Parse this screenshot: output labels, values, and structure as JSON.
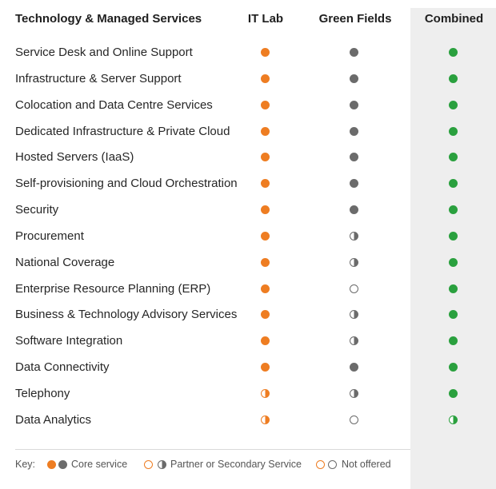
{
  "header": {
    "title": "Technology & Managed Services",
    "columns": [
      "IT Lab",
      "Green Fields",
      "Combined"
    ]
  },
  "rows": [
    {
      "label": "Service Desk and Online Support",
      "it_lab": "core",
      "green_fields": "core",
      "combined": "core"
    },
    {
      "label": "Infrastructure & Server Support",
      "it_lab": "core",
      "green_fields": "core",
      "combined": "core"
    },
    {
      "label": "Colocation and Data Centre Services",
      "it_lab": "core",
      "green_fields": "core",
      "combined": "core"
    },
    {
      "label": "Dedicated Infrastructure & Private Cloud",
      "it_lab": "core",
      "green_fields": "core",
      "combined": "core"
    },
    {
      "label": "Hosted Servers (IaaS)",
      "it_lab": "core",
      "green_fields": "core",
      "combined": "core"
    },
    {
      "label": "Self-provisioning and Cloud Orchestration",
      "it_lab": "core",
      "green_fields": "core",
      "combined": "core"
    },
    {
      "label": "Security",
      "it_lab": "core",
      "green_fields": "core",
      "combined": "core"
    },
    {
      "label": "Procurement",
      "it_lab": "core",
      "green_fields": "partner",
      "combined": "core"
    },
    {
      "label": "National Coverage",
      "it_lab": "core",
      "green_fields": "partner",
      "combined": "core"
    },
    {
      "label": "Enterprise Resource Planning (ERP)",
      "it_lab": "core",
      "green_fields": "none",
      "combined": "core"
    },
    {
      "label": "Business & Technology Advisory Services",
      "it_lab": "core",
      "green_fields": "partner",
      "combined": "core"
    },
    {
      "label": "Software Integration",
      "it_lab": "core",
      "green_fields": "partner",
      "combined": "core"
    },
    {
      "label": "Data Connectivity",
      "it_lab": "core",
      "green_fields": "core",
      "combined": "core"
    },
    {
      "label": "Telephony",
      "it_lab": "partner",
      "green_fields": "partner",
      "combined": "core"
    },
    {
      "label": "Data Analytics",
      "it_lab": "partner",
      "green_fields": "none",
      "combined": "partner"
    }
  ],
  "key": {
    "label": "Key:",
    "core": "Core service",
    "partner": "Partner or Secondary Service",
    "none": "Not offered"
  },
  "colors": {
    "it_lab": "#ee7d22",
    "green_fields": "#6b6b6b",
    "combined": "#2aa03e"
  }
}
